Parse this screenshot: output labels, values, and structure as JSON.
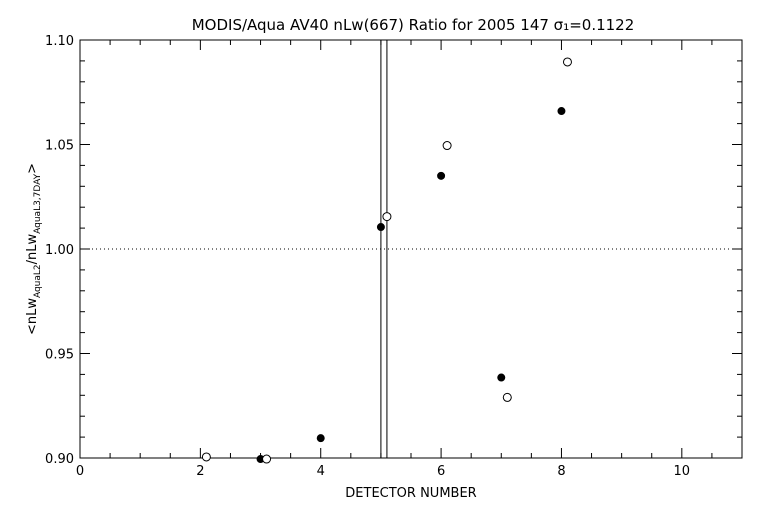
{
  "chart_data": {
    "type": "scatter",
    "title": "MODIS/Aqua AV40 nLw(667) Ratio for 2005 147 σ₁=0.1122",
    "xlabel": "DETECTOR NUMBER",
    "ylabel": "<nLw_AquaL2/nLw_AquaL3,7DAY>",
    "xlim": [
      0,
      11
    ],
    "ylim": [
      0.9,
      1.1
    ],
    "x_ticks": [
      "0",
      "2",
      "4",
      "6",
      "8",
      "10"
    ],
    "y_ticks": [
      "0.90",
      "0.95",
      "1.00",
      "1.05",
      "1.10"
    ],
    "reference_line_y": 1.0,
    "vertical_lines_x": [
      5.0,
      5.1
    ],
    "grid": false,
    "series": [
      {
        "marker": "filled-circle",
        "points": [
          {
            "x": 3.0,
            "y": 0.8995
          },
          {
            "x": 4.0,
            "y": 0.9095
          },
          {
            "x": 5.0,
            "y": 1.0105
          },
          {
            "x": 6.0,
            "y": 1.035
          },
          {
            "x": 7.0,
            "y": 0.9385
          },
          {
            "x": 8.0,
            "y": 1.066
          }
        ]
      },
      {
        "marker": "open-circle",
        "points": [
          {
            "x": 2.1,
            "y": 0.9005
          },
          {
            "x": 3.1,
            "y": 0.8995
          },
          {
            "x": 5.1,
            "y": 1.0155
          },
          {
            "x": 6.1,
            "y": 1.0495
          },
          {
            "x": 7.1,
            "y": 0.929
          },
          {
            "x": 8.1,
            "y": 1.0895
          }
        ]
      }
    ]
  }
}
